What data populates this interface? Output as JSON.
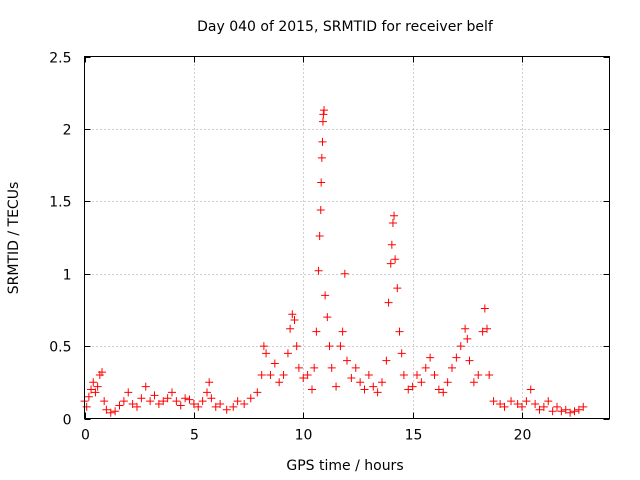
{
  "chart_data": {
    "type": "scatter",
    "title": "Day 040 of 2015, SRMTID for receiver belf",
    "xlabel": "GPS time / hours",
    "ylabel": "SRMTID / TECUs",
    "xlim": [
      0,
      24
    ],
    "ylim": [
      0,
      2.5
    ],
    "x_ticks": [
      0,
      5,
      10,
      15,
      20
    ],
    "y_ticks": [
      0,
      0.5,
      1,
      1.5,
      2,
      2.5
    ],
    "x_tick_labels": [
      "0",
      "5",
      "10",
      "15",
      "20"
    ],
    "y_tick_labels": [
      "0",
      "0.5",
      "1",
      "1.5",
      "2",
      "2.5"
    ],
    "grid": true,
    "marker": "+",
    "color": "#ff0000",
    "series": [
      {
        "name": "SRMTID",
        "points": [
          [
            0.0,
            0.12
          ],
          [
            0.1,
            0.08
          ],
          [
            0.2,
            0.15
          ],
          [
            0.3,
            0.2
          ],
          [
            0.4,
            0.25
          ],
          [
            0.5,
            0.18
          ],
          [
            0.6,
            0.22
          ],
          [
            0.7,
            0.3
          ],
          [
            0.8,
            0.32
          ],
          [
            0.9,
            0.12
          ],
          [
            1.0,
            0.06
          ],
          [
            1.2,
            0.04
          ],
          [
            1.4,
            0.05
          ],
          [
            1.6,
            0.09
          ],
          [
            1.8,
            0.12
          ],
          [
            2.0,
            0.18
          ],
          [
            2.2,
            0.1
          ],
          [
            2.4,
            0.08
          ],
          [
            2.6,
            0.14
          ],
          [
            2.8,
            0.22
          ],
          [
            3.0,
            0.12
          ],
          [
            3.2,
            0.16
          ],
          [
            3.4,
            0.1
          ],
          [
            3.6,
            0.12
          ],
          [
            3.8,
            0.14
          ],
          [
            4.0,
            0.18
          ],
          [
            4.2,
            0.12
          ],
          [
            4.4,
            0.09
          ],
          [
            4.6,
            0.14
          ],
          [
            4.8,
            0.13
          ],
          [
            5.0,
            0.1
          ],
          [
            5.2,
            0.08
          ],
          [
            5.4,
            0.12
          ],
          [
            5.6,
            0.18
          ],
          [
            5.7,
            0.25
          ],
          [
            5.8,
            0.14
          ],
          [
            6.0,
            0.08
          ],
          [
            6.2,
            0.1
          ],
          [
            6.5,
            0.06
          ],
          [
            6.8,
            0.08
          ],
          [
            7.0,
            0.12
          ],
          [
            7.3,
            0.1
          ],
          [
            7.6,
            0.14
          ],
          [
            7.9,
            0.18
          ],
          [
            8.1,
            0.3
          ],
          [
            8.2,
            0.5
          ],
          [
            8.3,
            0.45
          ],
          [
            8.5,
            0.3
          ],
          [
            8.7,
            0.38
          ],
          [
            8.9,
            0.25
          ],
          [
            9.1,
            0.3
          ],
          [
            9.3,
            0.45
          ],
          [
            9.4,
            0.62
          ],
          [
            9.5,
            0.72
          ],
          [
            9.6,
            0.68
          ],
          [
            9.7,
            0.5
          ],
          [
            9.8,
            0.35
          ],
          [
            10.0,
            0.28
          ],
          [
            10.2,
            0.3
          ],
          [
            10.4,
            0.2
          ],
          [
            10.5,
            0.35
          ],
          [
            10.6,
            0.6
          ],
          [
            10.7,
            1.02
          ],
          [
            10.75,
            1.26
          ],
          [
            10.8,
            1.44
          ],
          [
            10.82,
            1.63
          ],
          [
            10.85,
            1.8
          ],
          [
            10.88,
            1.91
          ],
          [
            10.9,
            2.05
          ],
          [
            10.92,
            2.1
          ],
          [
            10.95,
            2.13
          ],
          [
            11.0,
            0.85
          ],
          [
            11.1,
            0.7
          ],
          [
            11.2,
            0.5
          ],
          [
            11.3,
            0.35
          ],
          [
            11.5,
            0.22
          ],
          [
            11.7,
            0.5
          ],
          [
            11.8,
            0.6
          ],
          [
            11.9,
            1.0
          ],
          [
            12.0,
            0.4
          ],
          [
            12.2,
            0.28
          ],
          [
            12.4,
            0.35
          ],
          [
            12.6,
            0.25
          ],
          [
            12.8,
            0.2
          ],
          [
            13.0,
            0.3
          ],
          [
            13.2,
            0.22
          ],
          [
            13.4,
            0.18
          ],
          [
            13.6,
            0.25
          ],
          [
            13.8,
            0.4
          ],
          [
            13.9,
            0.8
          ],
          [
            14.0,
            1.07
          ],
          [
            14.05,
            1.2
          ],
          [
            14.1,
            1.35
          ],
          [
            14.15,
            1.4
          ],
          [
            14.2,
            1.1
          ],
          [
            14.3,
            0.9
          ],
          [
            14.4,
            0.6
          ],
          [
            14.5,
            0.45
          ],
          [
            14.6,
            0.3
          ],
          [
            14.8,
            0.2
          ],
          [
            15.0,
            0.22
          ],
          [
            15.2,
            0.3
          ],
          [
            15.4,
            0.25
          ],
          [
            15.6,
            0.35
          ],
          [
            15.8,
            0.42
          ],
          [
            16.0,
            0.3
          ],
          [
            16.2,
            0.2
          ],
          [
            16.4,
            0.18
          ],
          [
            16.6,
            0.25
          ],
          [
            16.8,
            0.35
          ],
          [
            17.0,
            0.42
          ],
          [
            17.2,
            0.5
          ],
          [
            17.4,
            0.62
          ],
          [
            17.5,
            0.55
          ],
          [
            17.6,
            0.4
          ],
          [
            17.8,
            0.25
          ],
          [
            18.0,
            0.3
          ],
          [
            18.2,
            0.6
          ],
          [
            18.3,
            0.76
          ],
          [
            18.4,
            0.62
          ],
          [
            18.5,
            0.3
          ],
          [
            18.7,
            0.12
          ],
          [
            19.0,
            0.1
          ],
          [
            19.2,
            0.08
          ],
          [
            19.5,
            0.12
          ],
          [
            19.8,
            0.1
          ],
          [
            20.0,
            0.08
          ],
          [
            20.2,
            0.12
          ],
          [
            20.4,
            0.2
          ],
          [
            20.6,
            0.1
          ],
          [
            20.8,
            0.06
          ],
          [
            21.0,
            0.08
          ],
          [
            21.2,
            0.12
          ],
          [
            21.4,
            0.05
          ],
          [
            21.6,
            0.08
          ],
          [
            21.8,
            0.05
          ],
          [
            22.0,
            0.06
          ],
          [
            22.2,
            0.04
          ],
          [
            22.4,
            0.05
          ],
          [
            22.6,
            0.06
          ],
          [
            22.8,
            0.08
          ]
        ]
      }
    ]
  }
}
